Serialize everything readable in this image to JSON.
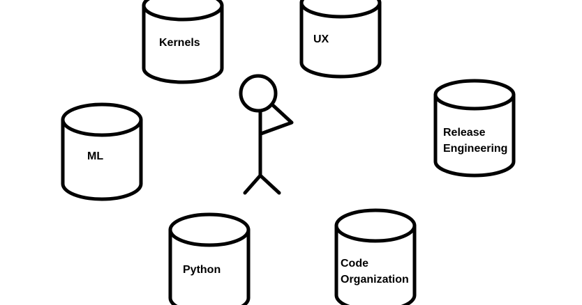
{
  "colors": {
    "stroke": "#000000",
    "background": "#ffffff"
  },
  "cylinders": {
    "kernels": {
      "label_lines": [
        "Kernels"
      ]
    },
    "ux": {
      "label_lines": [
        "UX"
      ]
    },
    "ml": {
      "label_lines": [
        "ML"
      ]
    },
    "release": {
      "label_lines": [
        "Release",
        "Engineering"
      ]
    },
    "python": {
      "label_lines": [
        "Python"
      ]
    },
    "code": {
      "label_lines": [
        "Code",
        "Organization"
      ]
    }
  }
}
